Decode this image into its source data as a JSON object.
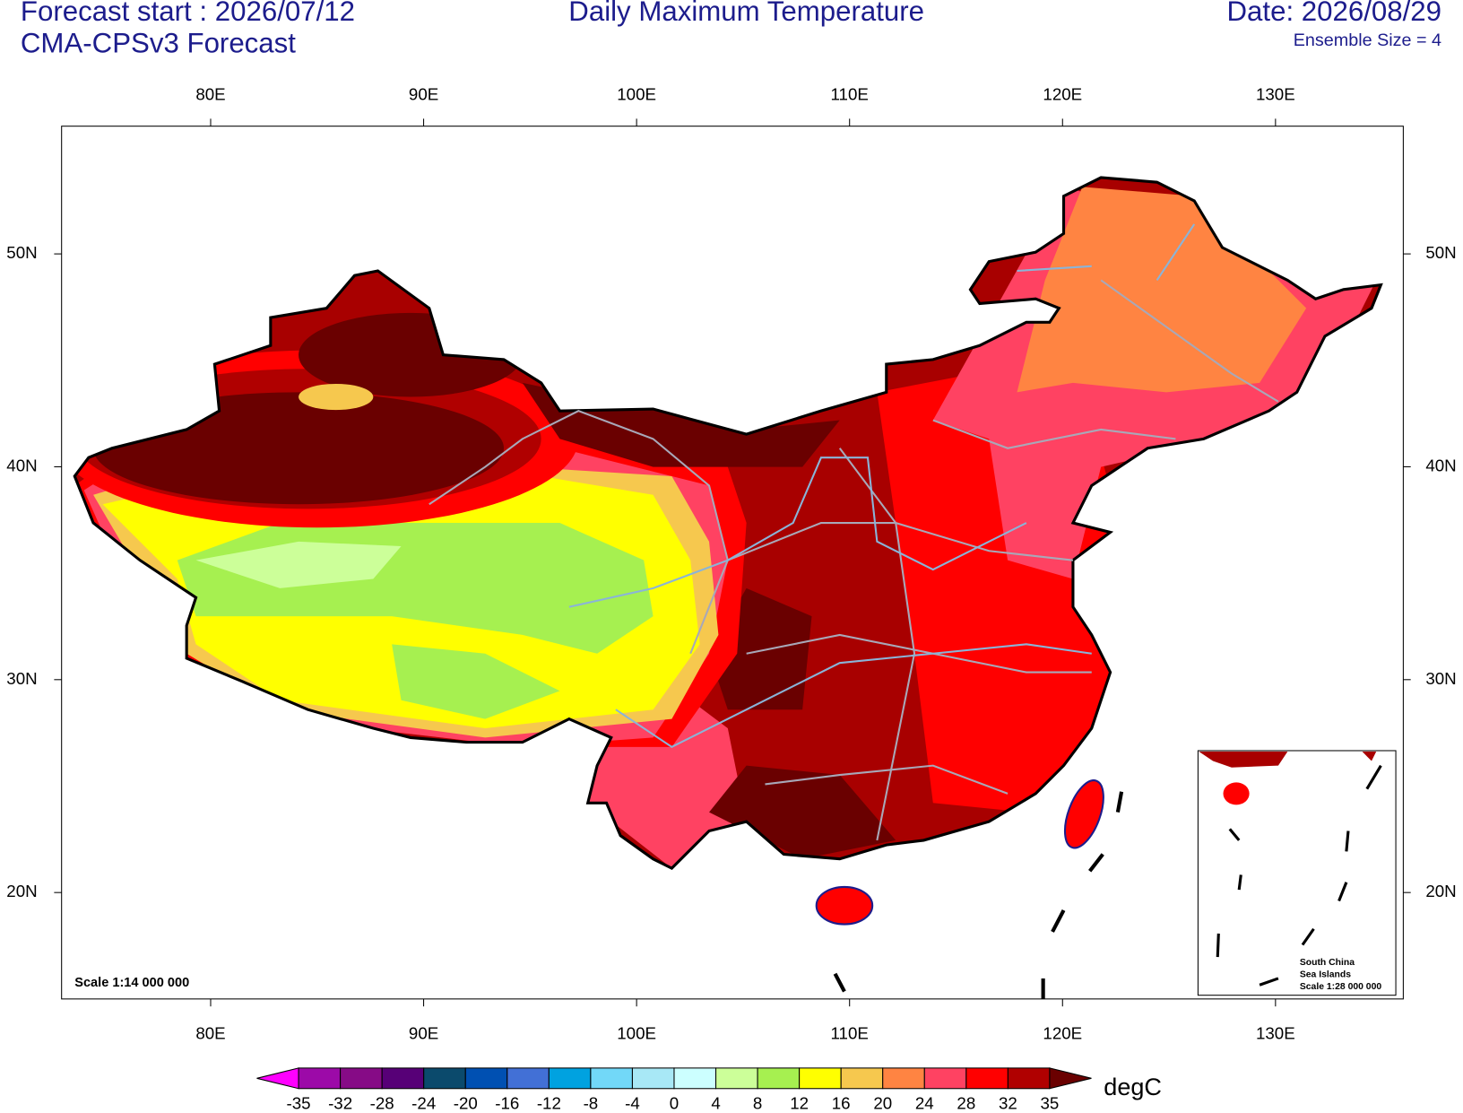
{
  "header": {
    "forecast_start": "Forecast start : 2026/07/12",
    "model": "CMA-CPSv3 Forecast",
    "title": "Daily Maximum Temperature",
    "date": "Date: 2026/08/29",
    "ensemble": "Ensemble Size = 4"
  },
  "map": {
    "xlim": [
      73,
      136
    ],
    "ylim": [
      15,
      56
    ],
    "xticks": [
      {
        "value": 80,
        "label": "80E"
      },
      {
        "value": 90,
        "label": "90E"
      },
      {
        "value": 100,
        "label": "100E"
      },
      {
        "value": 110,
        "label": "110E"
      },
      {
        "value": 120,
        "label": "120E"
      },
      {
        "value": 130,
        "label": "130E"
      }
    ],
    "yticks": [
      {
        "value": 20,
        "label": "20N"
      },
      {
        "value": 30,
        "label": "30N"
      },
      {
        "value": 40,
        "label": "40N"
      },
      {
        "value": 50,
        "label": "50N"
      }
    ],
    "scale": "Scale 1:14 000 000",
    "inset": [
      "South China",
      "Sea Islands",
      "Scale 1:28 000 000"
    ]
  },
  "colorbar": {
    "unit": "degC",
    "levels": [
      -35,
      -32,
      -28,
      -24,
      -20,
      -16,
      -12,
      -8,
      -4,
      0,
      4,
      8,
      12,
      16,
      20,
      24,
      28,
      32,
      35
    ],
    "colors": [
      "#ff00ff",
      "#9c0aa8",
      "#860b86",
      "#570077",
      "#0b4a6c",
      "#0050b2",
      "#4270d6",
      "#00a2e0",
      "#72d8f8",
      "#a8e8f6",
      "#ccffff",
      "#ccff99",
      "#a6f050",
      "#ffff00",
      "#f6c84e",
      "#ff8442",
      "#ff4262",
      "#ff0000",
      "#b00000",
      "#6a0000"
    ]
  }
}
